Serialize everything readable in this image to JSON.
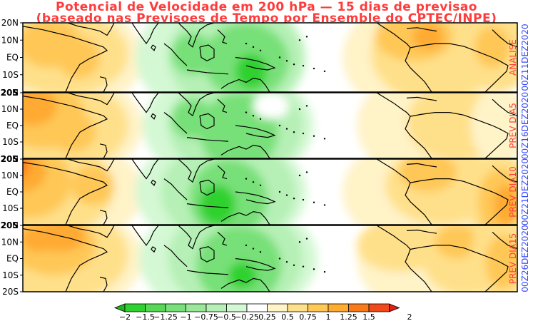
{
  "title_line1": "Potencial de Velocidade em 200 hPa — 15 dias de previsao",
  "title_line2": "(baseado nas Previsoes de Tempo por Ensemble do CPTEC/INPE)",
  "latitude_ticks": [
    "20N",
    "10N",
    "EQ",
    "10S",
    "20S"
  ],
  "panels": [
    {
      "label": "ANALISE",
      "date": "00Z11DEZ2020"
    },
    {
      "label": "PREV DIA5",
      "date": "00Z16DEZ2020"
    },
    {
      "label": "PREV DIA10",
      "date": "00Z21DEZ2020"
    },
    {
      "label": "PREV DIA15",
      "date": "00Z26DEZ2020"
    }
  ],
  "colorbar": {
    "labels": [
      "−2",
      "−1.5",
      "−1.25",
      "−1",
      "−0.75",
      "−0.5",
      "−0.25",
      "0.25",
      "0.5",
      "0.75",
      "1",
      "1.25",
      "1.5",
      "2"
    ],
    "colors": [
      "#2fd12f",
      "#55d955",
      "#78e078",
      "#98e898",
      "#b6f0b6",
      "#d4f8d4",
      "#ffffff",
      "#fff3c8",
      "#ffe08a",
      "#ffc857",
      "#ffaa30",
      "#f97a1c",
      "#f04a1a"
    ],
    "under_color": "#1fb81f",
    "over_color": "#e02010"
  },
  "label_color": "#ff3b3b",
  "date_color": "#3344ff"
}
